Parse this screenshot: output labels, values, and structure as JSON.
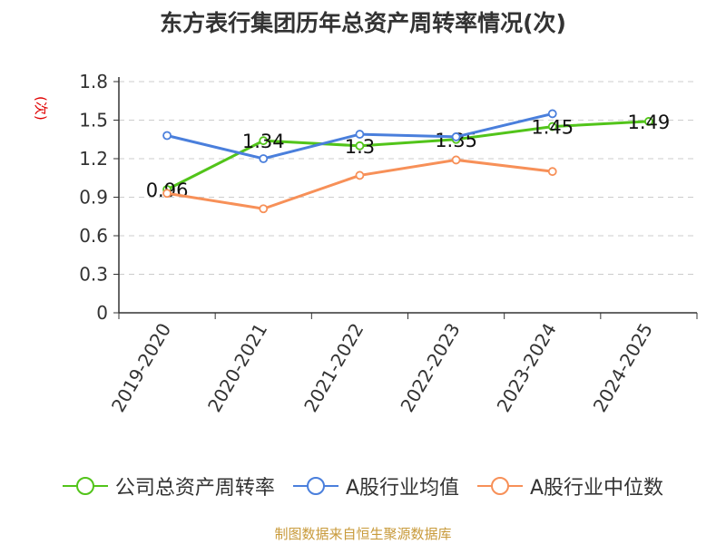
{
  "chart_data": {
    "type": "line",
    "title": "东方表行集团历年总资产周转率情况(次)",
    "unit_label": "(次)",
    "categories": [
      "2019-2020",
      "2020-2021",
      "2021-2022",
      "2022-2023",
      "2023-2024",
      "2024-2025"
    ],
    "yticks": [
      "0",
      "0.3",
      "0.6",
      "0.9",
      "1.2",
      "1.5",
      "1.8"
    ],
    "ylim": [
      0,
      1.8
    ],
    "grid": true,
    "legend_position": "bottom",
    "series": [
      {
        "name": "公司总资产周转率",
        "color": "#52c41a",
        "values": [
          0.96,
          1.34,
          1.3,
          1.35,
          1.45,
          1.49
        ],
        "labels": [
          "0.96",
          "1.34",
          "1.3",
          "1.35",
          "1.45",
          "1.49"
        ]
      },
      {
        "name": "A股行业均值",
        "color": "#4a7fdc",
        "values": [
          1.38,
          1.2,
          1.39,
          1.37,
          1.55,
          null
        ]
      },
      {
        "name": "A股行业中位数",
        "color": "#f79058",
        "values": [
          0.93,
          0.81,
          1.07,
          1.19,
          1.1,
          null
        ]
      }
    ],
    "source": "制图数据来自恒生聚源数据库"
  }
}
